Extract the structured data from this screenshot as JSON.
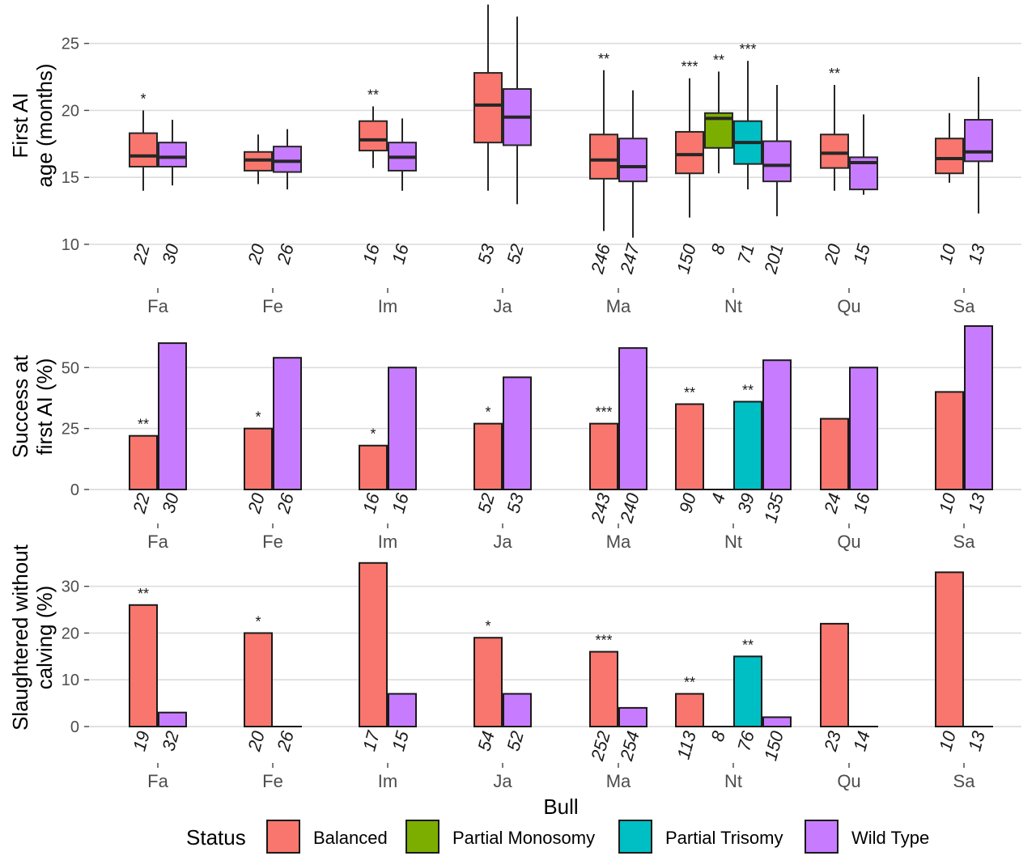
{
  "colors": {
    "Balanced": "#F8766D",
    "Partial Monosomy": "#7CAE00",
    "Partial Trisomy": "#00BFC4",
    "Wild Type": "#C77CFF"
  },
  "x_title": "Bull",
  "legend": {
    "title": "Status",
    "items": [
      "Balanced",
      "Partial Monosomy",
      "Partial Trisomy",
      "Wild Type"
    ]
  },
  "chart_data": [
    {
      "type": "boxplot",
      "ylabel": [
        "First AI",
        "age (months)"
      ],
      "ylim": [
        10,
        28
      ],
      "yticks": [
        10,
        15,
        20,
        25
      ],
      "categories": [
        "Fa",
        "Fe",
        "Im",
        "Ja",
        "Ma",
        "Nt",
        "Qu",
        "Sa"
      ],
      "groups": [
        {
          "category": "Fa",
          "status": "Balanced",
          "n": "22",
          "sig": "*",
          "min": 14.0,
          "q1": 15.8,
          "median": 16.6,
          "q3": 18.3,
          "max": 20.0
        },
        {
          "category": "Fa",
          "status": "Wild Type",
          "n": "30",
          "sig": "",
          "min": 14.4,
          "q1": 15.8,
          "median": 16.5,
          "q3": 17.6,
          "max": 19.3
        },
        {
          "category": "Fe",
          "status": "Balanced",
          "n": "20",
          "sig": "",
          "min": 14.5,
          "q1": 15.5,
          "median": 16.3,
          "q3": 16.9,
          "max": 18.2
        },
        {
          "category": "Fe",
          "status": "Wild Type",
          "n": "26",
          "sig": "",
          "min": 14.1,
          "q1": 15.4,
          "median": 16.2,
          "q3": 17.3,
          "max": 18.6
        },
        {
          "category": "Im",
          "status": "Balanced",
          "n": "16",
          "sig": "**",
          "min": 15.7,
          "q1": 17.0,
          "median": 17.8,
          "q3": 19.2,
          "max": 20.3
        },
        {
          "category": "Im",
          "status": "Wild Type",
          "n": "16",
          "sig": "",
          "min": 14.0,
          "q1": 15.5,
          "median": 16.5,
          "q3": 17.6,
          "max": 19.4
        },
        {
          "category": "Ja",
          "status": "Balanced",
          "n": "53",
          "sig": "*",
          "min": 14.0,
          "q1": 17.6,
          "median": 20.4,
          "q3": 22.8,
          "max": 27.9
        },
        {
          "category": "Ja",
          "status": "Wild Type",
          "n": "52",
          "sig": "",
          "min": 13.0,
          "q1": 17.4,
          "median": 19.5,
          "q3": 21.6,
          "max": 27.0
        },
        {
          "category": "Ma",
          "status": "Balanced",
          "n": "246",
          "sig": "**",
          "min": 11.0,
          "q1": 14.9,
          "median": 16.3,
          "q3": 18.2,
          "max": 23.0
        },
        {
          "category": "Ma",
          "status": "Wild Type",
          "n": "247",
          "sig": "",
          "min": 10.5,
          "q1": 14.7,
          "median": 15.8,
          "q3": 17.9,
          "max": 21.5
        },
        {
          "category": "Nt",
          "status": "Balanced",
          "n": "150",
          "sig": "***",
          "min": 12.0,
          "q1": 15.3,
          "median": 16.7,
          "q3": 18.4,
          "max": 22.4
        },
        {
          "category": "Nt",
          "status": "Partial Monosomy",
          "n": "8",
          "sig": "**",
          "min": 15.3,
          "q1": 17.2,
          "median": 19.4,
          "q3": 19.8,
          "max": 22.9
        },
        {
          "category": "Nt",
          "status": "Partial Trisomy",
          "n": "71",
          "sig": "***",
          "min": 14.1,
          "q1": 16.0,
          "median": 17.6,
          "q3": 19.2,
          "max": 23.7
        },
        {
          "category": "Nt",
          "status": "Wild Type",
          "n": "201",
          "sig": "",
          "min": 12.1,
          "q1": 14.7,
          "median": 15.9,
          "q3": 17.7,
          "max": 21.9
        },
        {
          "category": "Qu",
          "status": "Balanced",
          "n": "20",
          "sig": "**",
          "min": 14.0,
          "q1": 15.7,
          "median": 16.8,
          "q3": 18.2,
          "max": 21.9
        },
        {
          "category": "Qu",
          "status": "Wild Type",
          "n": "15",
          "sig": "",
          "min": 13.7,
          "q1": 14.1,
          "median": 16.1,
          "q3": 16.5,
          "max": 19.7
        },
        {
          "category": "Sa",
          "status": "Balanced",
          "n": "10",
          "sig": "",
          "min": 14.6,
          "q1": 15.3,
          "median": 16.4,
          "q3": 17.9,
          "max": 19.8
        },
        {
          "category": "Sa",
          "status": "Wild Type",
          "n": "13",
          "sig": "",
          "min": 12.3,
          "q1": 16.2,
          "median": 16.9,
          "q3": 19.3,
          "max": 22.5
        }
      ]
    },
    {
      "type": "bar",
      "ylabel": [
        "Success at",
        "first AI (%)"
      ],
      "ylim": [
        0,
        68
      ],
      "yticks": [
        0,
        25,
        50
      ],
      "categories": [
        "Fa",
        "Fe",
        "Im",
        "Ja",
        "Ma",
        "Nt",
        "Qu",
        "Sa"
      ],
      "groups": [
        {
          "category": "Fa",
          "status": "Balanced",
          "n": "22",
          "sig": "**",
          "value": 22
        },
        {
          "category": "Fa",
          "status": "Wild Type",
          "n": "30",
          "sig": "",
          "value": 60
        },
        {
          "category": "Fe",
          "status": "Balanced",
          "n": "20",
          "sig": "*",
          "value": 25
        },
        {
          "category": "Fe",
          "status": "Wild Type",
          "n": "26",
          "sig": "",
          "value": 54
        },
        {
          "category": "Im",
          "status": "Balanced",
          "n": "16",
          "sig": "*",
          "value": 18
        },
        {
          "category": "Im",
          "status": "Wild Type",
          "n": "16",
          "sig": "",
          "value": 50
        },
        {
          "category": "Ja",
          "status": "Balanced",
          "n": "52",
          "sig": "*",
          "value": 27
        },
        {
          "category": "Ja",
          "status": "Wild Type",
          "n": "53",
          "sig": "",
          "value": 46
        },
        {
          "category": "Ma",
          "status": "Balanced",
          "n": "243",
          "sig": "***",
          "value": 27
        },
        {
          "category": "Ma",
          "status": "Wild Type",
          "n": "240",
          "sig": "",
          "value": 58
        },
        {
          "category": "Nt",
          "status": "Balanced",
          "n": "90",
          "sig": "**",
          "value": 35
        },
        {
          "category": "Nt",
          "status": "Partial Monosomy",
          "n": "4",
          "sig": "",
          "value": 0
        },
        {
          "category": "Nt",
          "status": "Partial Trisomy",
          "n": "39",
          "sig": "**",
          "value": 36
        },
        {
          "category": "Nt",
          "status": "Wild Type",
          "n": "135",
          "sig": "",
          "value": 53
        },
        {
          "category": "Qu",
          "status": "Balanced",
          "n": "24",
          "sig": "",
          "value": 29
        },
        {
          "category": "Qu",
          "status": "Wild Type",
          "n": "16",
          "sig": "",
          "value": 50
        },
        {
          "category": "Sa",
          "status": "Balanced",
          "n": "10",
          "sig": "",
          "value": 40
        },
        {
          "category": "Sa",
          "status": "Wild Type",
          "n": "13",
          "sig": "",
          "value": 67
        }
      ]
    },
    {
      "type": "bar",
      "ylabel": [
        "Slaughtered without",
        "calving (%)"
      ],
      "ylim": [
        0,
        36
      ],
      "yticks": [
        0,
        10,
        20,
        30
      ],
      "categories": [
        "Fa",
        "Fe",
        "Im",
        "Ja",
        "Ma",
        "Nt",
        "Qu",
        "Sa"
      ],
      "groups": [
        {
          "category": "Fa",
          "status": "Balanced",
          "n": "19",
          "sig": "**",
          "value": 26
        },
        {
          "category": "Fa",
          "status": "Wild Type",
          "n": "32",
          "sig": "",
          "value": 3
        },
        {
          "category": "Fe",
          "status": "Balanced",
          "n": "20",
          "sig": "*",
          "value": 20
        },
        {
          "category": "Fe",
          "status": "Wild Type",
          "n": "26",
          "sig": "",
          "value": 0
        },
        {
          "category": "Im",
          "status": "Balanced",
          "n": "17",
          "sig": "",
          "value": 35
        },
        {
          "category": "Im",
          "status": "Wild Type",
          "n": "15",
          "sig": "",
          "value": 7
        },
        {
          "category": "Ja",
          "status": "Balanced",
          "n": "54",
          "sig": "*",
          "value": 19
        },
        {
          "category": "Ja",
          "status": "Wild Type",
          "n": "52",
          "sig": "",
          "value": 7
        },
        {
          "category": "Ma",
          "status": "Balanced",
          "n": "252",
          "sig": "***",
          "value": 16
        },
        {
          "category": "Ma",
          "status": "Wild Type",
          "n": "254",
          "sig": "",
          "value": 4
        },
        {
          "category": "Nt",
          "status": "Balanced",
          "n": "113",
          "sig": "**",
          "value": 7
        },
        {
          "category": "Nt",
          "status": "Partial Monosomy",
          "n": "8",
          "sig": "",
          "value": 0
        },
        {
          "category": "Nt",
          "status": "Partial Trisomy",
          "n": "76",
          "sig": "**",
          "value": 15
        },
        {
          "category": "Nt",
          "status": "Wild Type",
          "n": "150",
          "sig": "",
          "value": 2
        },
        {
          "category": "Qu",
          "status": "Balanced",
          "n": "23",
          "sig": "",
          "value": 22
        },
        {
          "category": "Qu",
          "status": "Wild Type",
          "n": "14",
          "sig": "",
          "value": 0
        },
        {
          "category": "Sa",
          "status": "Balanced",
          "n": "10",
          "sig": "",
          "value": 33
        },
        {
          "category": "Sa",
          "status": "Wild Type",
          "n": "13",
          "sig": "",
          "value": 0
        }
      ]
    }
  ]
}
